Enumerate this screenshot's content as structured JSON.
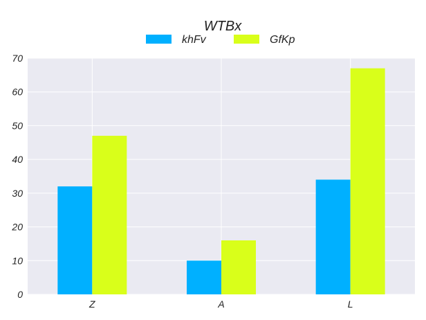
{
  "chart_data": {
    "type": "bar",
    "title": "WTBx",
    "xlabel": "",
    "ylabel": "",
    "categories": [
      "Z",
      "A",
      "L"
    ],
    "series": [
      {
        "name": "khFv",
        "values": [
          32,
          10,
          34
        ],
        "color": "#00b0ff"
      },
      {
        "name": "GfKp",
        "values": [
          47,
          16,
          67
        ],
        "color": "#d9ff1a"
      }
    ],
    "ylim": [
      0,
      70
    ],
    "yticks": [
      0,
      10,
      20,
      30,
      40,
      50,
      60,
      70
    ],
    "grid": true,
    "legend_position": "top-center",
    "background_color": "#eaeaf2"
  }
}
